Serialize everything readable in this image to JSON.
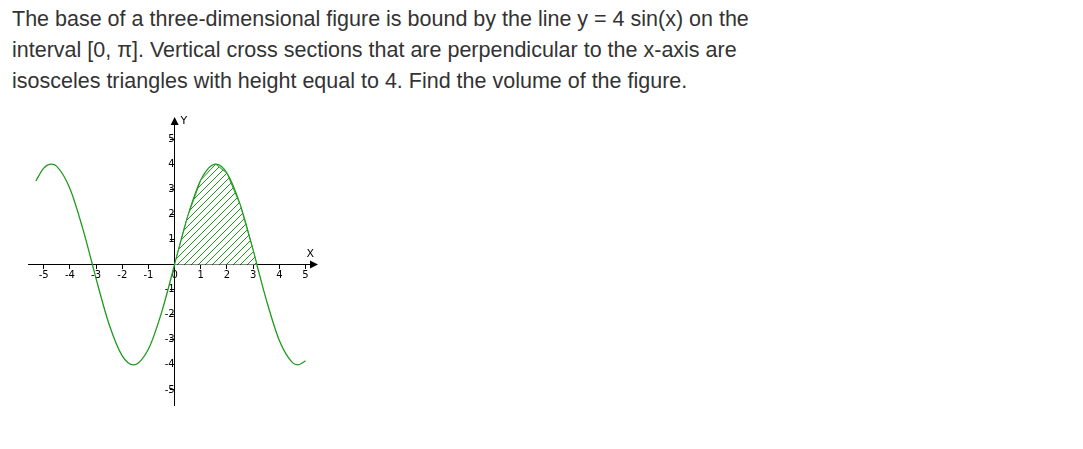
{
  "problem_lines": [
    "The base of a three-dimensional figure is bound by the line y = 4 sin(x) on the",
    "interval [0, π]. Vertical cross sections that are perpendicular to the x-axis are",
    "isosceles triangles with height equal to 4. Find the volume of the figure."
  ],
  "chart_data": {
    "type": "line",
    "x": [
      -5.3,
      -5,
      -4.71,
      -4.5,
      -4,
      -3.5,
      -3.14,
      -3,
      -2.5,
      -2,
      -1.57,
      -1,
      -0.5,
      0,
      0.5,
      1,
      1.57,
      2,
      2.5,
      3,
      3.14,
      3.5,
      4,
      4.5,
      4.71,
      5
    ],
    "values": [
      3.33,
      3.84,
      4.0,
      3.91,
      3.03,
      1.4,
      0,
      -0.56,
      -2.39,
      -3.64,
      -4.0,
      -3.37,
      -1.92,
      0,
      1.92,
      3.37,
      4.0,
      3.64,
      2.39,
      0.56,
      0,
      -1.4,
      -3.03,
      -3.91,
      -4.0,
      -3.84
    ],
    "color": "#1f9a1f",
    "shaded_x": [
      0,
      3.14
    ],
    "x_label": "X",
    "y_label": "Y",
    "xlim": [
      -5.6,
      5.4
    ],
    "ylim": [
      -5.6,
      5.8
    ],
    "xticks": [
      -5,
      -4,
      -3,
      -2,
      -1,
      0,
      1,
      2,
      3,
      4,
      5
    ],
    "yticks": [
      -5,
      -4,
      -3,
      -2,
      -1,
      1,
      2,
      3,
      4,
      5
    ],
    "grid": false
  }
}
